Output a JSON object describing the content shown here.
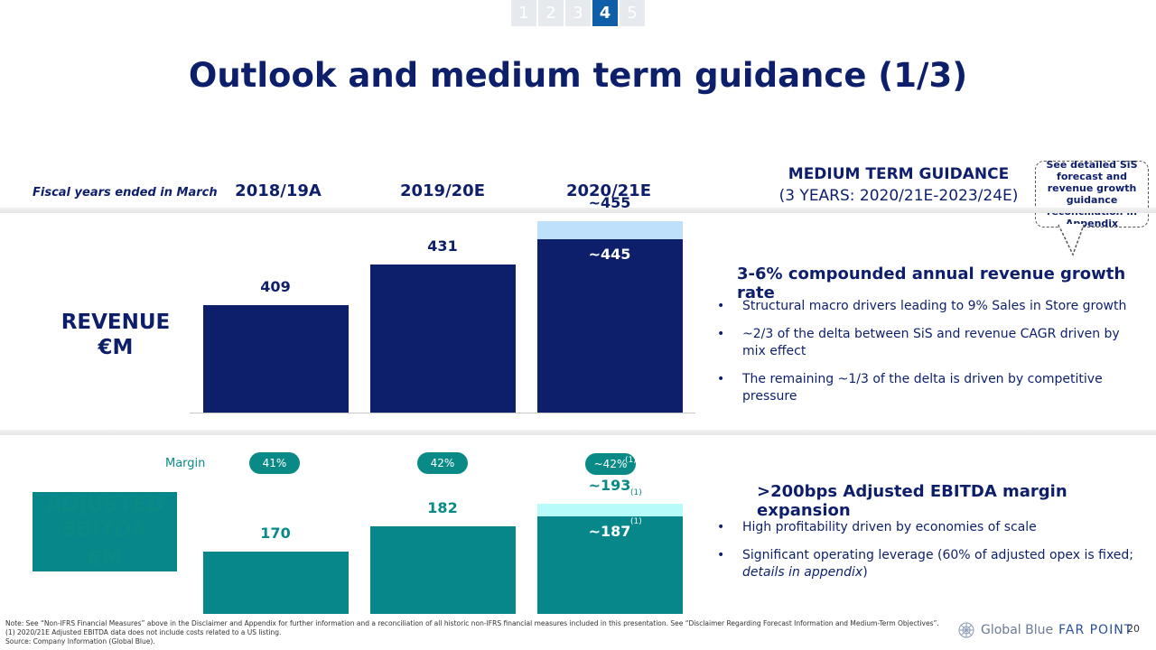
{
  "nav": {
    "tabs": [
      "1",
      "2",
      "3",
      "4",
      "5"
    ],
    "active_tab": "4"
  },
  "title": "Outlook and medium term guidance (1/3)",
  "header": {
    "fiscal_note": "Fiscal years ended in March",
    "years": [
      "2018/19A",
      "2019/20E",
      "2020/21E"
    ],
    "guidance_title": "MEDIUM TERM GUIDANCE",
    "guidance_subtitle": "(3 YEARS: 2020/21E-2023/24E)"
  },
  "callout": "See detailed SiS forecast and revenue growth guidance reconciliation in Appendix",
  "revenue": {
    "label_line1": "REVENUE",
    "label_line2": "€M",
    "bars": [
      {
        "year": "2018/19A",
        "label": "409"
      },
      {
        "year": "2019/20E",
        "label": "431"
      },
      {
        "year": "2020/21E",
        "label": "~445",
        "top_label": "~455"
      }
    ],
    "heading": "3-6% compounded annual revenue growth rate",
    "bullets": [
      "Structural macro drivers leading to 9% Sales in Store growth",
      "~2/3 of the delta between SiS and revenue CAGR driven by mix effect",
      "The remaining ~1/3 of the delta is driven by competitive pressure"
    ]
  },
  "ebitda": {
    "label_line1": "ADJUSTED",
    "label_line2": "EBITDA",
    "label_line3": "€M",
    "margin_label": "Margin",
    "margins": [
      "41%",
      "42%",
      "~42%"
    ],
    "footnote_marker": "(1)",
    "bars": [
      {
        "year": "2018/19A",
        "label": "170"
      },
      {
        "year": "2019/20E",
        "label": "182"
      },
      {
        "year": "2020/21E",
        "label": "~187",
        "top_label": "~193"
      }
    ],
    "heading": ">200bps Adjusted EBITDA margin expansion",
    "bullet1": "High profitability driven by economies of scale",
    "bullet2_main": "Significant operating leverage (60% of adjusted opex is fixed; ",
    "bullet2_italic": "details in appendix",
    "bullet2_end": ")"
  },
  "chart_data": [
    {
      "type": "bar",
      "title": "REVENUE €M",
      "categories": [
        "2018/19A",
        "2019/20E",
        "2020/21E"
      ],
      "series": [
        {
          "name": "Revenue",
          "values": [
            409,
            431,
            445
          ]
        },
        {
          "name": "Upside range",
          "values": [
            0,
            0,
            10
          ]
        }
      ],
      "data_labels": [
        "409",
        "431",
        "~445",
        "~455"
      ],
      "ylim": [
        0,
        460
      ]
    },
    {
      "type": "bar",
      "title": "ADJUSTED EBITDA €M",
      "categories": [
        "2018/19A",
        "2019/20E",
        "2020/21E"
      ],
      "series": [
        {
          "name": "Adjusted EBITDA",
          "values": [
            170,
            182,
            187
          ]
        },
        {
          "name": "Upside range",
          "values": [
            0,
            0,
            6
          ]
        }
      ],
      "margins": [
        "41%",
        "42%",
        "~42%"
      ],
      "data_labels": [
        "170",
        "182",
        "~187",
        "~193"
      ],
      "ylim": [
        0,
        200
      ]
    }
  ],
  "footer": {
    "note1": "Note: See “Non-IFRS Financial Measures” above in the Disclaimer and Appendix for further information and a reconciliation of all historic non-IFRS financial measures included in this presentation. See “Disclaimer Regarding Forecast Information and Medium-Term Objectives”.",
    "note2": "(1) 2020/21E Adjusted EBITDA data does not include costs related to a US listing.",
    "note3": "Source: Company Information (Global Blue).",
    "brand1": "Global Blue",
    "brand2": "FAR POINT",
    "page_number": "20"
  }
}
